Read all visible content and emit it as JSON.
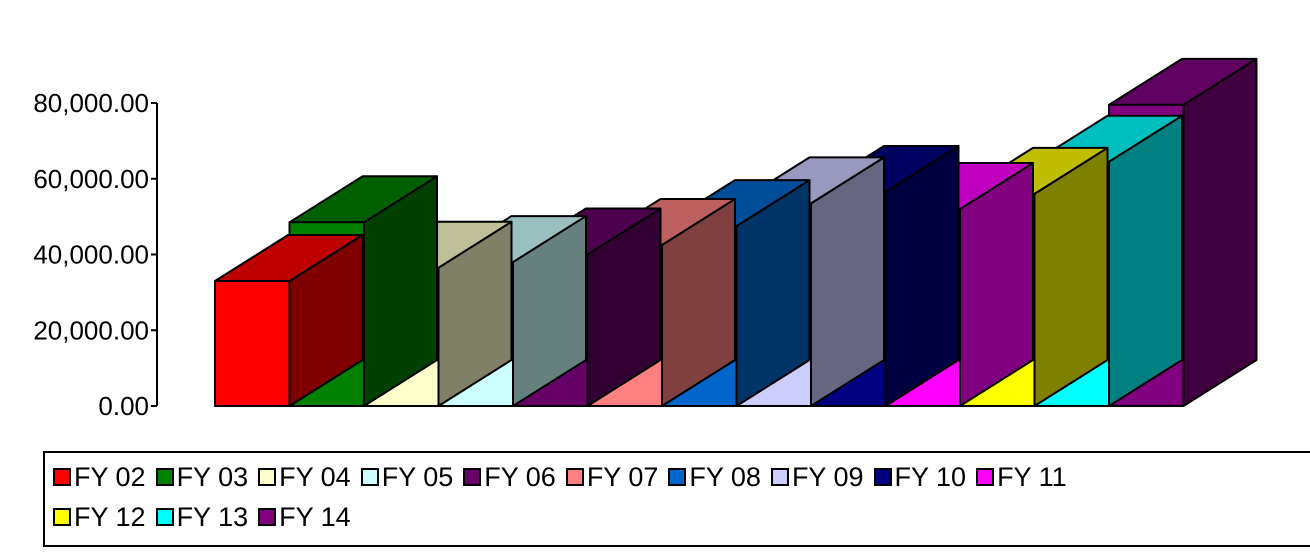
{
  "chart_data": {
    "type": "bar",
    "style": "3d-column",
    "categories": [
      "FY 02",
      "FY 03",
      "FY 04",
      "FY 05",
      "FY 06",
      "FY 07",
      "FY 08",
      "FY 09",
      "FY 10",
      "FY 11",
      "FY 12",
      "FY 13",
      "FY 14"
    ],
    "values": [
      33000,
      48500,
      36500,
      38000,
      40000,
      42500,
      47500,
      53500,
      56500,
      52000,
      56000,
      64500,
      79500
    ],
    "colors": [
      "#ff0000",
      "#008000",
      "#ffffcc",
      "#ccffff",
      "#660066",
      "#ff8080",
      "#0066cc",
      "#ccccff",
      "#000080",
      "#ff00ff",
      "#ffff00",
      "#00ffff",
      "#800080"
    ],
    "yticks": [
      "0.00",
      "20,000.00",
      "40,000.00",
      "60,000.00",
      "80,000.00"
    ],
    "ylim": [
      0,
      80000
    ],
    "grid": false,
    "legend_position": "bottom",
    "title": "",
    "xlabel": "",
    "ylabel": ""
  }
}
